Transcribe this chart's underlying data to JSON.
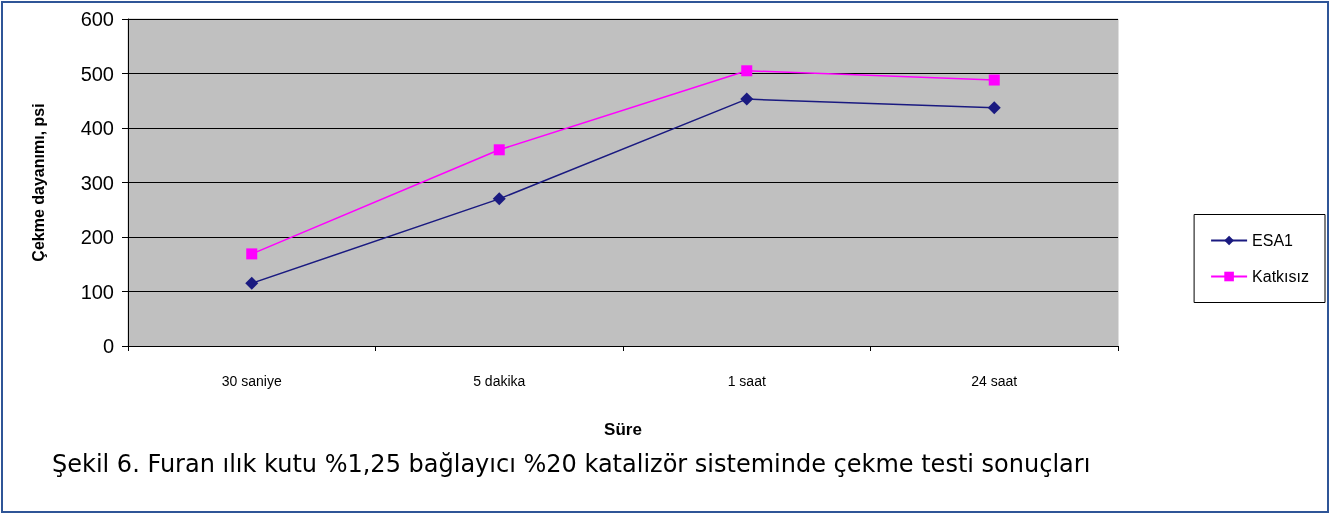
{
  "chart_data": {
    "type": "line",
    "xlabel": "Süre",
    "ylabel": "Çekme dayanımı, psi",
    "categories": [
      "30 saniye",
      "5 dakika",
      "1 saat",
      "24 saat"
    ],
    "series": [
      {
        "name": "ESA1",
        "color": "#1a1a80",
        "marker": "diamond",
        "values": [
          115,
          270,
          453,
          437
        ]
      },
      {
        "name": "Katkısız",
        "color": "#ff00ff",
        "marker": "square",
        "values": [
          169,
          360,
          505,
          488
        ]
      }
    ],
    "ylim": [
      0,
      600
    ],
    "yticks": [
      0,
      100,
      200,
      300,
      400,
      500,
      600
    ],
    "grid": "y",
    "legend": "right",
    "line_style": "solid",
    "annotations": [
      "Şekil 6. Furan ılık kutu %1,25 bağlayıcı %20 katalizör sisteminde çekme testi sonuçları"
    ]
  }
}
